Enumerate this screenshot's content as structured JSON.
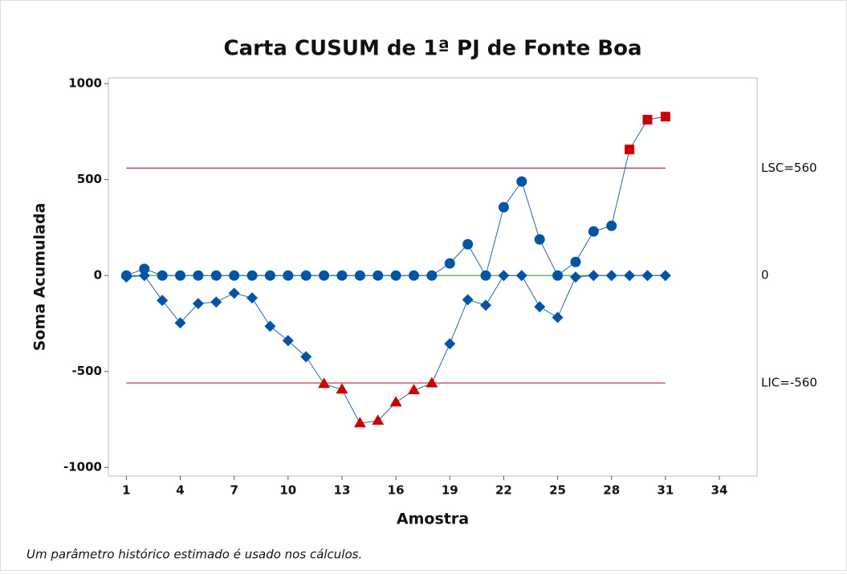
{
  "chart_data": {
    "type": "cusum",
    "title": "Carta CUSUM de 1ª PJ de Fonte Boa",
    "x_label": "Amostra",
    "y_label": "Soma Acumulada",
    "footnote": "Um parâmetro histórico estimado é usado nos cálculos.",
    "x": [
      1,
      2,
      3,
      4,
      5,
      6,
      7,
      8,
      9,
      10,
      11,
      12,
      13,
      14,
      15,
      16,
      17,
      18,
      19,
      20,
      21,
      22,
      23,
      24,
      25,
      26,
      27,
      28,
      29,
      30,
      31
    ],
    "series": [
      {
        "color": "#0054a6",
        "marker": "circle",
        "alert_marker": "square",
        "alert_color": "#cc0000",
        "side": "upper",
        "values": [
          0,
          35,
          0,
          0,
          0,
          0,
          0,
          0,
          0,
          0,
          0,
          0,
          0,
          0,
          0,
          0,
          0,
          0,
          63,
          163,
          0,
          356,
          490,
          188,
          0,
          71,
          230,
          259,
          657,
          812,
          828
        ]
      },
      {
        "color": "#0054a6",
        "marker": "diamond",
        "alert_marker": "triangle",
        "alert_color": "#cc0000",
        "side": "lower",
        "values": [
          -8,
          0,
          -130,
          -247,
          -146,
          -138,
          -92,
          -117,
          -264,
          -339,
          -423,
          -565,
          -594,
          -770,
          -757,
          -661,
          -598,
          -562,
          -356,
          -126,
          -155,
          0,
          0,
          -163,
          -218,
          -8,
          0,
          0,
          0,
          0,
          0
        ]
      }
    ],
    "ucl": 560,
    "ucl_label": "LSC=560",
    "lcl": -560,
    "lcl_label": "LIC=-560",
    "center": 0,
    "limit_color": "#b4293f",
    "center_color": "#3a9a3a",
    "line_color": "#2a64a8",
    "xlim": [
      0,
      36.1
    ],
    "xticks": [
      1,
      4,
      7,
      10,
      13,
      16,
      19,
      22,
      25,
      28,
      31,
      34
    ],
    "ylim": [
      -1045,
      1030
    ],
    "yticks": [
      -1000,
      -500,
      0,
      500,
      1000
    ]
  }
}
